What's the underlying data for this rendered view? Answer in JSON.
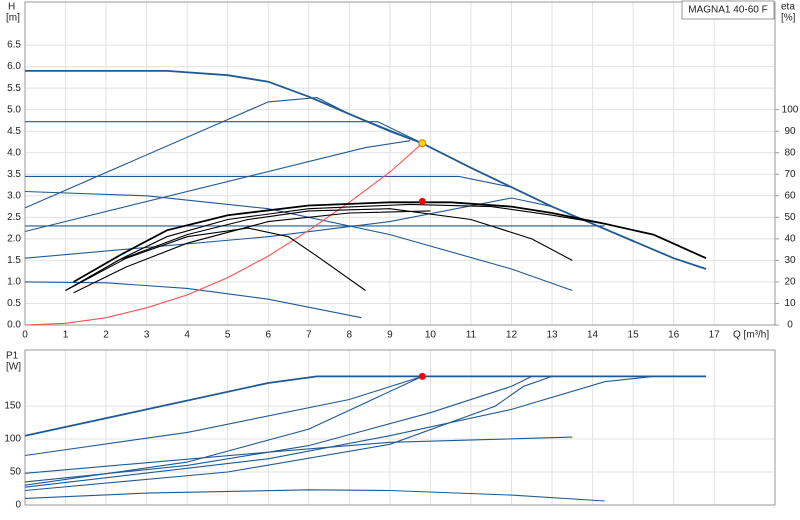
{
  "chart_data": [
    {
      "type": "line",
      "title": "MAGNA1 40-60 F",
      "y_label_top": "H",
      "y_label_unit": "[m]",
      "y2_label_top": "eta",
      "y2_label_unit": "[%]",
      "x_label": "Q [m³/h]",
      "xlim": [
        0,
        18.5
      ],
      "ylim": [
        0,
        7.5
      ],
      "y2lim": [
        0,
        150
      ],
      "grid": true,
      "xticks": [
        0,
        1,
        2,
        3,
        4,
        5,
        6,
        7,
        8,
        9,
        10,
        11,
        12,
        13,
        14,
        15,
        16,
        17
      ],
      "yticks": [
        {
          "value": 0,
          "label": "0.0"
        },
        0.5,
        {
          "value": 1,
          "label": "1.0"
        },
        1.5,
        {
          "value": 2,
          "label": "2.0"
        },
        2.5,
        {
          "value": 3,
          "label": "3.0"
        },
        3.5,
        {
          "value": 4,
          "label": "4.0"
        },
        4.5,
        {
          "value": 5,
          "label": "5.0"
        },
        5.5,
        {
          "value": 6,
          "label": "6.0"
        },
        6.5
      ],
      "y2ticks": [
        0,
        10,
        20,
        30,
        40,
        50,
        60,
        70,
        80,
        90,
        100
      ],
      "series": [
        {
          "color": "#1f5a96",
          "x": [
            0,
            3.5,
            5,
            6,
            7,
            8,
            9,
            9.8,
            11,
            12,
            13,
            14,
            15,
            16,
            16.8
          ],
          "values": [
            5.9,
            5.9,
            5.8,
            5.65,
            5.3,
            4.9,
            4.5,
            4.22,
            3.65,
            3.2,
            2.75,
            2.35,
            1.95,
            1.55,
            1.3
          ]
        },
        {
          "color": "#1f5a96",
          "x": [
            0,
            8.4,
            9.5
          ],
          "values": [
            2.17,
            4.12,
            4.28
          ]
        },
        {
          "color": "#1f5a96",
          "x": [
            0,
            6,
            7.2,
            8,
            9.8
          ],
          "values": [
            2.72,
            5.18,
            5.28,
            4.9,
            4.22
          ]
        },
        {
          "color": "#1f5a96",
          "x": [
            0,
            8.7,
            9.8
          ],
          "values": [
            4.72,
            4.72,
            4.22
          ]
        },
        {
          "color": "#1f5a96",
          "x": [
            0,
            10.7,
            12,
            13
          ],
          "values": [
            3.45,
            3.45,
            3.2,
            2.75
          ]
        },
        {
          "color": "#1f5a96",
          "x": [
            0,
            14.3
          ],
          "values": [
            2.3,
            2.3
          ]
        },
        {
          "color": "#1f5a96",
          "x": [
            0,
            6,
            9,
            12,
            13
          ],
          "values": [
            1.55,
            2.05,
            2.4,
            2.95,
            2.75
          ]
        },
        {
          "color": "#1f5a96",
          "x": [
            0,
            3,
            6,
            9,
            12,
            13.5
          ],
          "values": [
            3.1,
            3.0,
            2.7,
            2.1,
            1.3,
            0.8
          ]
        },
        {
          "color": "#1f5a96",
          "x": [
            0,
            2,
            4,
            6,
            8.3
          ],
          "values": [
            1.0,
            0.98,
            0.85,
            0.6,
            0.17
          ]
        },
        {
          "color": "#ff5050",
          "x": [
            0,
            1,
            2,
            3,
            4,
            5,
            6,
            7,
            8,
            9,
            9.8
          ],
          "values": [
            0,
            0.04,
            0.17,
            0.4,
            0.7,
            1.1,
            1.6,
            2.2,
            2.85,
            3.55,
            4.22
          ]
        },
        {
          "color": "#000000",
          "axis": "y2",
          "x": [
            1.2,
            2.4,
            3.5,
            5,
            7,
            9,
            10.5,
            12,
            13,
            14.3,
            15.5,
            16.8
          ],
          "values": [
            20,
            33,
            44,
            51,
            55.5,
            57,
            57,
            55,
            52,
            47,
            42,
            31
          ]
        },
        {
          "color": "#000000",
          "axis": "y2",
          "x": [
            1.2,
            2.4,
            3.5,
            5,
            7,
            9.5,
            11.5,
            13,
            14.3
          ],
          "values": [
            18,
            31,
            41,
            49,
            54,
            56,
            55,
            51,
            47
          ]
        },
        {
          "color": "#000000",
          "axis": "y2",
          "x": [
            1,
            2.3,
            4,
            5.5,
            7,
            9,
            11,
            12.5,
            13.5
          ],
          "values": [
            16,
            30,
            42,
            49,
            53,
            54,
            49,
            40,
            30
          ]
        },
        {
          "color": "#000000",
          "axis": "y2",
          "x": [
            1,
            2.5,
            4,
            5.5,
            6.5,
            7.2,
            8.4
          ],
          "values": [
            16,
            31,
            41,
            45,
            41,
            32,
            16
          ]
        },
        {
          "color": "#000000",
          "axis": "y2",
          "x": [
            1.2,
            2.5,
            4,
            6,
            8,
            10
          ],
          "values": [
            15,
            27,
            38,
            48,
            52,
            53
          ]
        },
        {
          "color": "#ff0000",
          "axis": "y2",
          "marker": true,
          "x": [
            9.8
          ],
          "values": [
            57.4
          ]
        },
        {
          "color": "#ffd200",
          "marker": true,
          "x": [
            9.8
          ],
          "values": [
            4.22
          ]
        }
      ]
    },
    {
      "type": "line",
      "y_label_top": "P1",
      "y_label_unit": "[W]",
      "xlim": [
        0,
        18.5
      ],
      "ylim": [
        0,
        235
      ],
      "grid": true,
      "yticks": [
        0,
        50,
        100,
        150
      ],
      "series": [
        {
          "color": "#1f5a96",
          "x": [
            0,
            3,
            6,
            7.2,
            16.8
          ],
          "values": [
            105,
            145,
            185,
            195,
            195
          ]
        },
        {
          "color": "#1f5a96",
          "x": [
            0,
            4,
            8,
            9.8
          ],
          "values": [
            75,
            110,
            160,
            195
          ]
        },
        {
          "color": "#1f5a96",
          "x": [
            0,
            4,
            7,
            9.8
          ],
          "values": [
            30,
            65,
            115,
            195
          ]
        },
        {
          "color": "#1f5a96",
          "x": [
            0,
            6,
            9,
            13.5
          ],
          "values": [
            48,
            80,
            95,
            103
          ]
        },
        {
          "color": "#1f5a96",
          "x": [
            0,
            3,
            7,
            9,
            12,
            14.3
          ],
          "values": [
            10,
            18,
            23,
            22,
            15,
            6
          ]
        },
        {
          "color": "#1f5a96",
          "x": [
            0,
            6,
            9,
            12,
            14.3,
            15.5
          ],
          "values": [
            27,
            70,
            105,
            145,
            187,
            195
          ]
        },
        {
          "color": "#1f5a96",
          "x": [
            0,
            5,
            9,
            11.6,
            12.3,
            13
          ],
          "values": [
            22,
            50,
            92,
            150,
            180,
            195
          ]
        },
        {
          "color": "#1f5a96",
          "x": [
            0,
            4,
            7,
            10,
            12,
            12.5
          ],
          "values": [
            35,
            60,
            90,
            140,
            180,
            195
          ]
        },
        {
          "color": "#ff0000",
          "marker": true,
          "x": [
            9.8
          ],
          "values": [
            195
          ]
        }
      ]
    }
  ]
}
